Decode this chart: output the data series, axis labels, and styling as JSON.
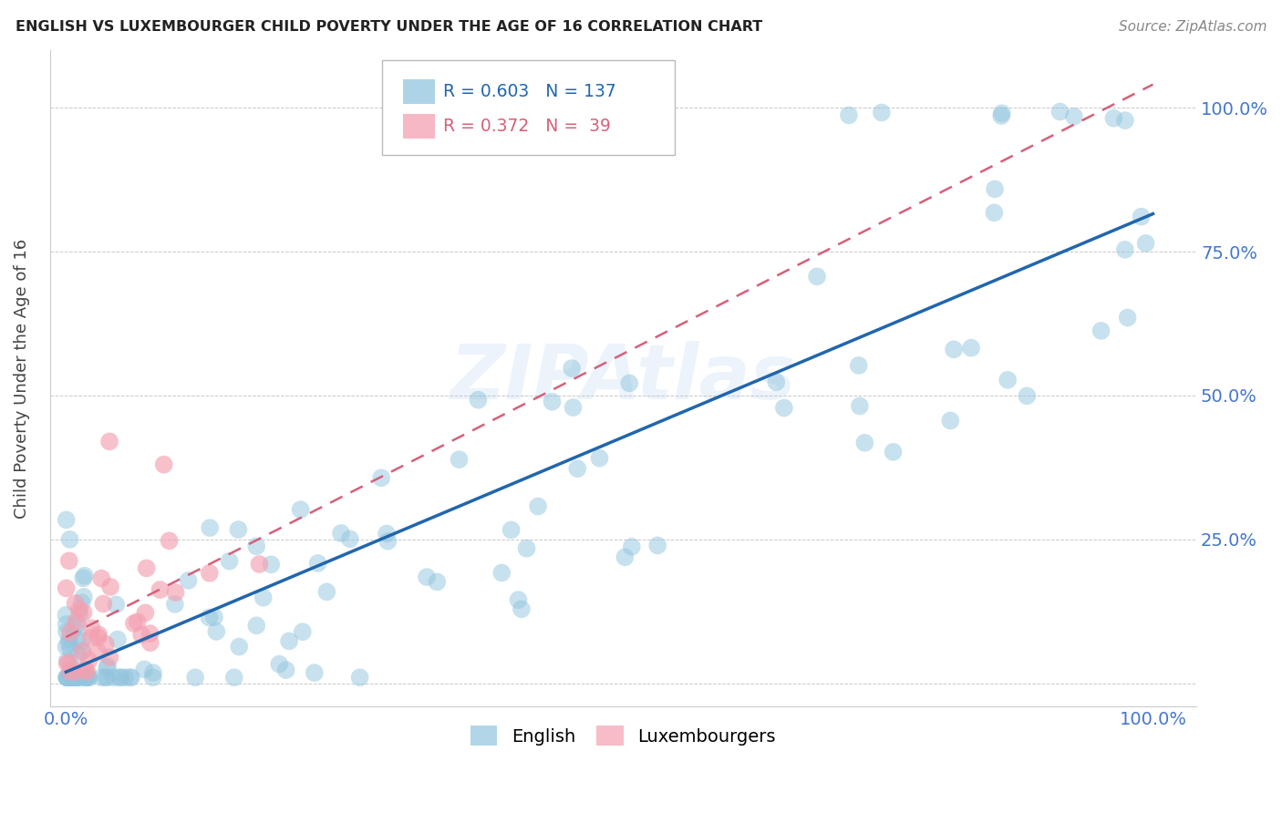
{
  "title": "ENGLISH VS LUXEMBOURGER CHILD POVERTY UNDER THE AGE OF 16 CORRELATION CHART",
  "source": "Source: ZipAtlas.com",
  "ylabel": "Child Poverty Under the Age of 16",
  "legend_english": "English",
  "legend_lux": "Luxembourgers",
  "english_R": 0.603,
  "english_N": 137,
  "lux_R": 0.372,
  "lux_N": 39,
  "watermark": "ZIPAtlas",
  "blue_color": "#92c5de",
  "blue_line_color": "#2166ac",
  "pink_color": "#f4a0b0",
  "pink_line_color": "#d6607a",
  "background_color": "#ffffff",
  "grid_color": "#bbbbbb",
  "title_color": "#222222",
  "source_color": "#888888",
  "tick_color": "#4477cc",
  "ylabel_color": "#444444"
}
